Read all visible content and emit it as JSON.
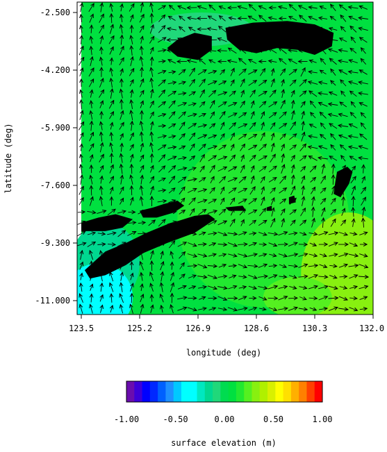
{
  "chart_data": {
    "type": "heatmap",
    "title": "",
    "xlabel": "longitude (deg)",
    "ylabel": "latitude (deg)",
    "xlim": [
      123.5,
      132.0
    ],
    "ylim": [
      -11.5,
      -2.2
    ],
    "x_ticks": [
      {
        "value": 123.5,
        "label": "123.5"
      },
      {
        "value": 125.2,
        "label": "125.2"
      },
      {
        "value": 126.9,
        "label": "126.9"
      },
      {
        "value": 128.6,
        "label": "128.6"
      },
      {
        "value": 130.3,
        "label": "130.3"
      },
      {
        "value": 132.0,
        "label": "132.0"
      }
    ],
    "y_ticks": [
      {
        "value": -2.5,
        "label": "-2.500"
      },
      {
        "value": -4.2,
        "label": "-4.200"
      },
      {
        "value": -5.9,
        "label": "-5.900"
      },
      {
        "value": -7.6,
        "label": "-7.600"
      },
      {
        "value": -9.3,
        "label": "-9.300"
      },
      {
        "value": -11.0,
        "label": "-11.000"
      }
    ],
    "grid": false,
    "background_value": 0.05,
    "land_color": "#000000",
    "overlay": "current vectors (arrows)",
    "field_regions": [
      {
        "type": "rect",
        "lon": [
          123.5,
          132.0
        ],
        "lat": [
          -11.5,
          -2.2
        ],
        "value": 0.05
      },
      {
        "type": "ellipse",
        "lon": 128.8,
        "lat": -8.6,
        "rlon": 2.5,
        "rlat": 2.6,
        "value": 0.12
      },
      {
        "type": "ellipse",
        "lon": 131.3,
        "lat": -10.2,
        "rlon": 1.4,
        "rlat": 1.8,
        "value": 0.33
      },
      {
        "type": "ellipse",
        "lon": 129.8,
        "lat": -10.9,
        "rlon": 1.0,
        "rlat": 0.6,
        "value": 0.25
      },
      {
        "type": "ellipse",
        "lon": 127.0,
        "lat": -3.0,
        "rlon": 1.5,
        "rlat": 0.5,
        "value": -0.05
      },
      {
        "type": "ellipse",
        "lon": 124.2,
        "lat": -9.9,
        "rlon": 1.0,
        "rlat": 1.2,
        "value": -0.18
      },
      {
        "type": "ellipse",
        "lon": 124.0,
        "lat": -10.9,
        "rlon": 1.0,
        "rlat": 1.0,
        "value": -0.3
      }
    ],
    "land_polygons": [
      [
        [
          126.3,
          -3.3
        ],
        [
          126.8,
          -3.1
        ],
        [
          127.3,
          -3.2
        ],
        [
          127.3,
          -3.6
        ],
        [
          126.9,
          -3.9
        ],
        [
          126.3,
          -3.8
        ],
        [
          126.0,
          -3.55
        ]
      ],
      [
        [
          127.7,
          -2.95
        ],
        [
          128.5,
          -2.8
        ],
        [
          129.5,
          -2.75
        ],
        [
          130.3,
          -2.85
        ],
        [
          130.85,
          -3.1
        ],
        [
          130.8,
          -3.5
        ],
        [
          130.3,
          -3.75
        ],
        [
          129.8,
          -3.6
        ],
        [
          129.2,
          -3.55
        ],
        [
          128.6,
          -3.7
        ],
        [
          128.1,
          -3.6
        ],
        [
          127.75,
          -3.3
        ]
      ],
      [
        [
          125.2,
          -8.35
        ],
        [
          125.6,
          -8.25
        ],
        [
          125.9,
          -8.15
        ],
        [
          126.3,
          -8.05
        ],
        [
          126.5,
          -8.2
        ],
        [
          126.2,
          -8.4
        ],
        [
          125.7,
          -8.55
        ],
        [
          125.3,
          -8.55
        ]
      ],
      [
        [
          123.5,
          -8.7
        ],
        [
          124.0,
          -8.55
        ],
        [
          124.5,
          -8.45
        ],
        [
          125.0,
          -8.6
        ],
        [
          124.7,
          -8.85
        ],
        [
          124.2,
          -8.95
        ],
        [
          123.5,
          -8.95
        ]
      ],
      [
        [
          123.6,
          -10.1
        ],
        [
          124.2,
          -9.55
        ],
        [
          124.8,
          -9.3
        ],
        [
          125.4,
          -9.0
        ],
        [
          126.0,
          -8.75
        ],
        [
          126.8,
          -8.5
        ],
        [
          127.2,
          -8.45
        ],
        [
          127.4,
          -8.6
        ],
        [
          126.8,
          -9.0
        ],
        [
          126.0,
          -9.3
        ],
        [
          125.3,
          -9.6
        ],
        [
          124.8,
          -9.95
        ],
        [
          124.2,
          -10.25
        ],
        [
          123.75,
          -10.35
        ]
      ],
      [
        [
          130.95,
          -7.2
        ],
        [
          131.25,
          -7.05
        ],
        [
          131.4,
          -7.2
        ],
        [
          131.3,
          -7.55
        ],
        [
          131.05,
          -7.95
        ],
        [
          130.85,
          -7.85
        ],
        [
          130.9,
          -7.5
        ]
      ],
      [
        [
          129.55,
          -7.95
        ],
        [
          129.7,
          -7.9
        ],
        [
          129.75,
          -8.1
        ],
        [
          129.55,
          -8.15
        ]
      ],
      [
        [
          127.7,
          -8.25
        ],
        [
          128.2,
          -8.2
        ],
        [
          128.3,
          -8.35
        ],
        [
          127.8,
          -8.35
        ]
      ],
      [
        [
          128.9,
          -8.25
        ],
        [
          129.05,
          -8.2
        ],
        [
          129.05,
          -8.35
        ],
        [
          128.9,
          -8.35
        ]
      ]
    ],
    "colorbar": {
      "label": "surface elevation (m)",
      "range": [
        -1.0,
        1.0
      ],
      "ticks": [
        "-1.00",
        "-0.50",
        "0.00",
        "0.50",
        "1.00"
      ],
      "colors": [
        "#6a0dad",
        "#3d00d8",
        "#0000ff",
        "#0028ff",
        "#0060ff",
        "#1e90ff",
        "#00c8ff",
        "#00ffff",
        "#00ffff",
        "#00e8c0",
        "#00d890",
        "#20d87a",
        "#00dc50",
        "#00e040",
        "#22e830",
        "#55f020",
        "#88f010",
        "#b0f000",
        "#d8f000",
        "#ffff00",
        "#ffe000",
        "#ffb000",
        "#ff8000",
        "#ff4000",
        "#ff0000"
      ]
    }
  }
}
